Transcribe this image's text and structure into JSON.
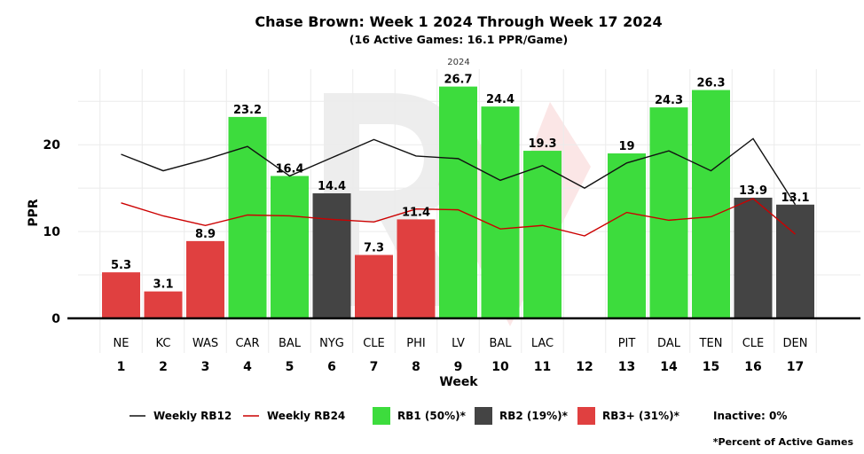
{
  "chart_data": {
    "type": "bar",
    "title": "Chase Brown: Week 1 2024 Through Week 17 2024",
    "subtitle": "(16 Active Games: 16.1 PPR/Game)",
    "season_label": "2024",
    "xlabel": "Week",
    "ylabel": "PPR",
    "ylim": [
      0,
      28.5
    ],
    "yticks": [
      0,
      10,
      20
    ],
    "grid": true,
    "weeks": [
      "1",
      "2",
      "3",
      "4",
      "5",
      "6",
      "7",
      "8",
      "9",
      "10",
      "11",
      "12",
      "13",
      "14",
      "15",
      "16",
      "17"
    ],
    "opponents": [
      "NE",
      "KC",
      "WAS",
      "CAR",
      "BAL",
      "NYG",
      "CLE",
      "PHI",
      "LV",
      "BAL",
      "LAC",
      "",
      "PIT",
      "DAL",
      "TEN",
      "CLE",
      "DEN"
    ],
    "values": [
      5.3,
      3.1,
      8.9,
      23.2,
      16.4,
      14.4,
      7.3,
      11.4,
      26.7,
      24.4,
      19.3,
      null,
      19,
      24.3,
      26.3,
      13.9,
      13.1
    ],
    "value_labels": [
      "5.3",
      "3.1",
      "8.9",
      "23.2",
      "16.4",
      "14.4",
      "7.3",
      "11.4",
      "26.7",
      "24.4",
      "19.3",
      "",
      "19",
      "24.3",
      "26.3",
      "13.9",
      "13.1"
    ],
    "tiers": [
      "rb3",
      "rb3",
      "rb3",
      "rb1",
      "rb1",
      "rb2",
      "rb3",
      "rb3",
      "rb1",
      "rb1",
      "rb1",
      "",
      "rb1",
      "rb1",
      "rb1",
      "rb2",
      "rb2"
    ],
    "lines": [
      {
        "name": "Weekly RB12",
        "color": "#111111",
        "values": [
          18.9,
          17.0,
          18.3,
          19.8,
          16.4,
          18.5,
          20.6,
          18.7,
          18.4,
          15.9,
          17.6,
          15.0,
          17.9,
          19.3,
          17.0,
          20.7,
          13.1
        ]
      },
      {
        "name": "Weekly RB24",
        "color": "#cc0000",
        "values": [
          13.3,
          11.8,
          10.7,
          11.9,
          11.8,
          11.4,
          11.1,
          12.6,
          12.5,
          10.3,
          10.7,
          9.5,
          12.2,
          11.3,
          11.7,
          13.8,
          9.7
        ]
      }
    ],
    "tier_colors": {
      "rb1": "#3ddc3d",
      "rb2": "#444444",
      "rb3": "#e04040"
    },
    "legend": {
      "placement": "bottom",
      "line_items": [
        "Weekly RB12",
        "Weekly RB24"
      ],
      "bar_items": [
        {
          "tier": "rb1",
          "label": "RB1 (50%)*"
        },
        {
          "tier": "rb2",
          "label": "RB2 (19%)*"
        },
        {
          "tier": "rb3",
          "label": "RB3+ (31%)*"
        }
      ],
      "inactive_label": "Inactive: 0%"
    },
    "footnote": "*Percent of Active Games"
  }
}
